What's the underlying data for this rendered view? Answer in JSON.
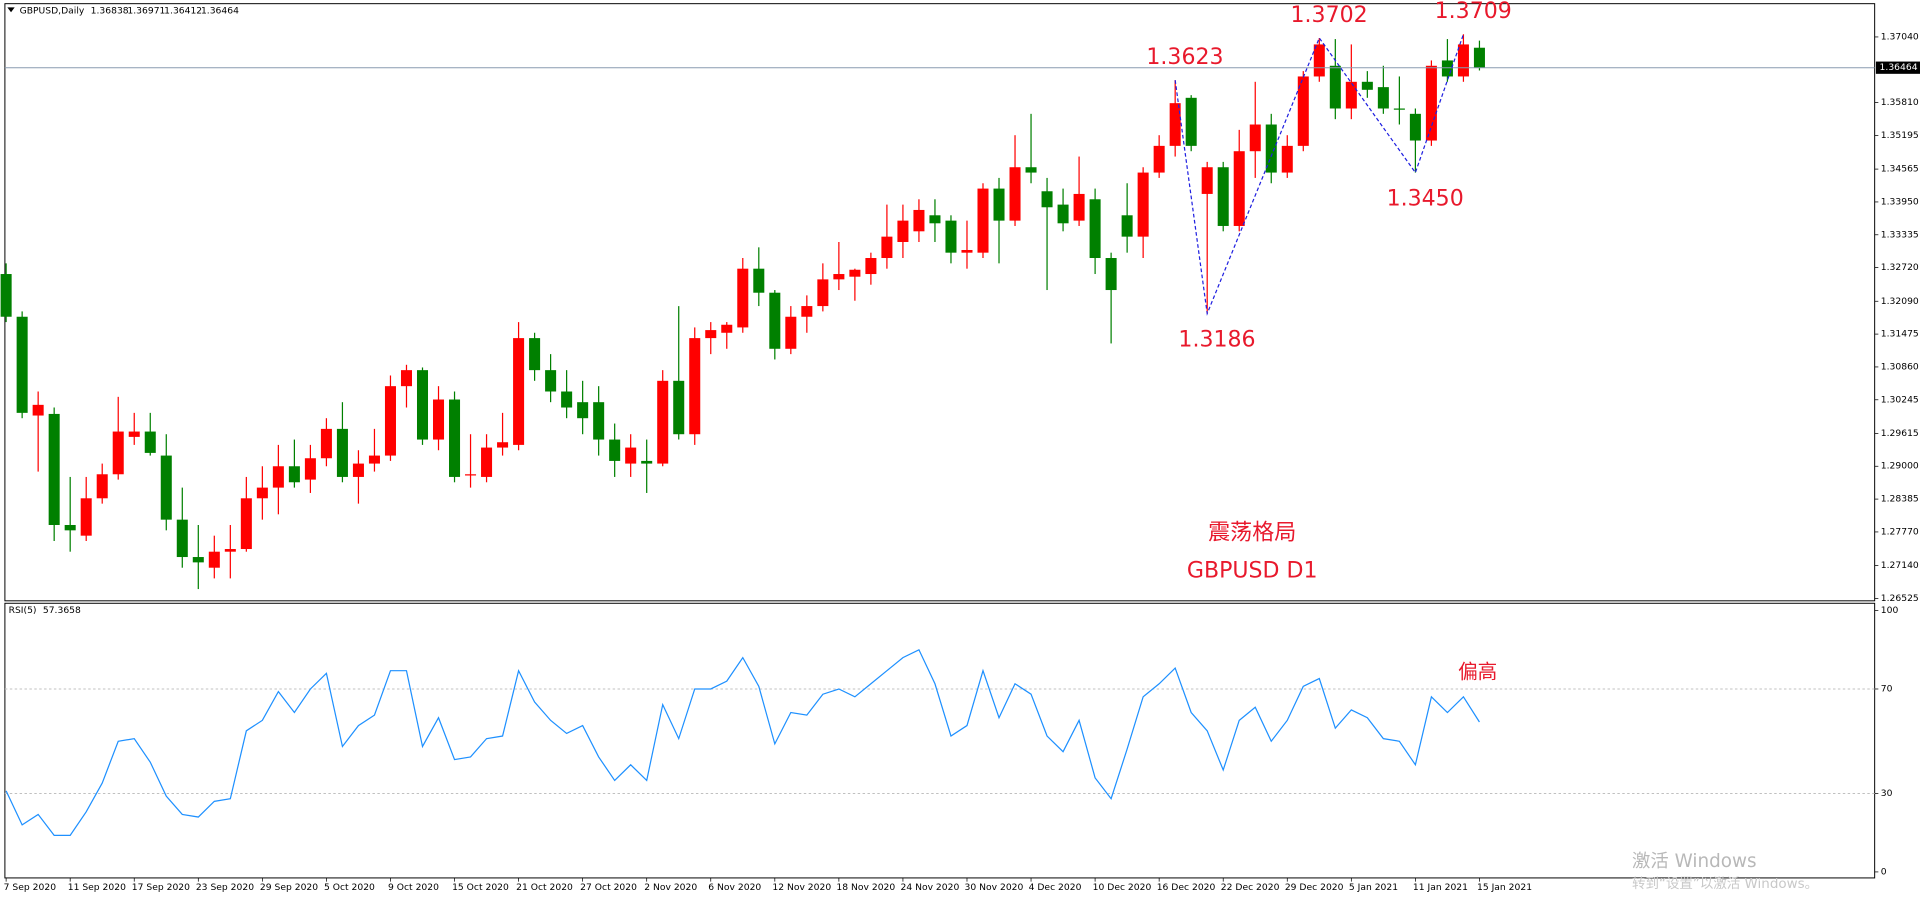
{
  "chart_data": [
    {
      "type": "candlestick",
      "title": "GBPUSD,Daily",
      "categories": [
        "7 Sep 2020",
        null,
        null,
        null,
        "11 Sep 2020",
        null,
        null,
        null,
        "17 Sep 2020",
        null,
        null,
        null,
        "23 Sep 2020",
        null,
        null,
        null,
        "29 Sep 2020",
        null,
        null,
        null,
        "5 Oct 2020",
        null,
        null,
        null,
        "9 Oct 2020",
        null,
        null,
        null,
        "15 Oct 2020",
        null,
        null,
        null,
        "21 Oct 2020",
        null,
        null,
        null,
        "27 Oct 2020",
        null,
        null,
        null,
        "2 Nov 2020",
        null,
        null,
        null,
        "6 Nov 2020",
        null,
        null,
        null,
        "12 Nov 2020",
        null,
        null,
        null,
        "18 Nov 2020",
        null,
        null,
        null,
        "24 Nov 2020",
        null,
        null,
        null,
        "30 Nov 2020",
        null,
        null,
        null,
        "4 Dec 2020",
        null,
        null,
        null,
        "10 Dec 2020",
        null,
        null,
        null,
        "16 Dec 2020",
        null,
        null,
        null,
        "22 Dec 2020",
        null,
        null,
        null,
        "29 Dec 2020",
        null,
        null,
        null,
        "5 Jan 2021",
        null,
        null,
        null,
        "11 Jan 2021",
        null,
        null,
        null,
        "15 Jan 2021"
      ],
      "open": [
        1.326,
        1.318,
        1.2995,
        1.2998,
        1.279,
        1.277,
        1.284,
        1.2885,
        1.2955,
        1.2965,
        1.292,
        1.28,
        1.273,
        1.271,
        1.274,
        1.2745,
        1.284,
        1.286,
        1.29,
        1.2875,
        1.2915,
        1.297,
        1.288,
        1.2905,
        1.292,
        1.305,
        1.308,
        1.295,
        1.3025,
        1.2885,
        1.288,
        1.2935,
        1.294,
        1.314,
        1.308,
        1.304,
        1.302,
        1.302,
        1.295,
        1.2905,
        1.291,
        1.2905,
        1.306,
        1.296,
        1.314,
        1.315,
        1.316,
        1.327,
        1.3225,
        1.312,
        1.318,
        1.32,
        1.325,
        1.3255,
        1.326,
        1.329,
        1.332,
        1.334,
        1.337,
        1.336,
        1.33,
        1.33,
        1.342,
        1.336,
        1.346,
        1.3415,
        1.339,
        1.336,
        1.34,
        1.329,
        1.337,
        1.333,
        1.345,
        1.35,
        1.359,
        1.341,
        1.346,
        1.335,
        1.349,
        1.354,
        1.345,
        1.35,
        1.363,
        1.365,
        1.357,
        1.362,
        1.361,
        1.357,
        1.356,
        1.351,
        1.366,
        1.363,
        1.36838
      ],
      "high": [
        1.328,
        1.319,
        1.304,
        1.301,
        1.288,
        1.288,
        1.2905,
        1.303,
        1.3,
        1.3,
        1.296,
        1.286,
        1.279,
        1.277,
        1.279,
        1.288,
        1.29,
        1.294,
        1.295,
        1.294,
        1.299,
        1.302,
        1.293,
        1.297,
        1.307,
        1.309,
        1.3085,
        1.305,
        1.304,
        1.296,
        1.296,
        1.3,
        1.317,
        1.315,
        1.311,
        1.308,
        1.306,
        1.305,
        1.298,
        1.296,
        1.295,
        1.308,
        1.32,
        1.316,
        1.317,
        1.317,
        1.329,
        1.331,
        1.323,
        1.32,
        1.322,
        1.328,
        1.332,
        1.327,
        1.33,
        1.339,
        1.339,
        1.34,
        1.34,
        1.337,
        1.336,
        1.343,
        1.344,
        1.352,
        1.356,
        1.344,
        1.342,
        1.348,
        1.342,
        1.33,
        1.343,
        1.346,
        1.352,
        1.3623,
        1.3595,
        1.347,
        1.347,
        1.353,
        1.362,
        1.356,
        1.352,
        1.364,
        1.3702,
        1.37,
        1.369,
        1.364,
        1.365,
        1.363,
        1.357,
        1.366,
        1.37,
        1.3709,
        1.36971
      ],
      "low": [
        1.317,
        1.299,
        1.289,
        1.276,
        1.274,
        1.276,
        1.283,
        1.2875,
        1.294,
        1.292,
        1.278,
        1.271,
        1.267,
        1.269,
        1.269,
        1.274,
        1.28,
        1.281,
        1.286,
        1.285,
        1.29,
        1.287,
        1.283,
        1.289,
        1.291,
        1.301,
        1.294,
        1.293,
        1.287,
        1.286,
        1.287,
        1.292,
        1.293,
        1.306,
        1.302,
        1.299,
        1.296,
        1.292,
        1.288,
        1.288,
        1.285,
        1.29,
        1.295,
        1.294,
        1.311,
        1.312,
        1.315,
        1.32,
        1.31,
        1.311,
        1.315,
        1.319,
        1.323,
        1.321,
        1.324,
        1.327,
        1.329,
        1.332,
        1.332,
        1.328,
        1.327,
        1.329,
        1.328,
        1.335,
        1.343,
        1.323,
        1.334,
        1.335,
        1.326,
        1.313,
        1.33,
        1.329,
        1.344,
        1.348,
        1.349,
        1.3186,
        1.334,
        1.334,
        1.344,
        1.343,
        1.344,
        1.349,
        1.362,
        1.355,
        1.355,
        1.359,
        1.356,
        1.354,
        1.345,
        1.35,
        1.362,
        1.362,
        1.36412
      ],
      "close": [
        1.318,
        1.3,
        1.3015,
        1.279,
        1.278,
        1.284,
        1.2885,
        1.2965,
        1.2965,
        1.2925,
        1.28,
        1.273,
        1.272,
        1.274,
        1.2745,
        1.284,
        1.286,
        1.29,
        1.287,
        1.2915,
        1.297,
        1.288,
        1.2905,
        1.292,
        1.305,
        1.308,
        1.295,
        1.3025,
        1.288,
        1.2885,
        1.2935,
        1.2945,
        1.314,
        1.308,
        1.304,
        1.301,
        1.299,
        1.295,
        1.291,
        1.2935,
        1.2905,
        1.306,
        1.296,
        1.314,
        1.3155,
        1.3165,
        1.327,
        1.3225,
        1.312,
        1.318,
        1.32,
        1.325,
        1.326,
        1.3268,
        1.329,
        1.333,
        1.336,
        1.338,
        1.3355,
        1.33,
        1.3305,
        1.342,
        1.336,
        1.346,
        1.345,
        1.3385,
        1.3355,
        1.341,
        1.329,
        1.323,
        1.333,
        1.345,
        1.35,
        1.358,
        1.35,
        1.346,
        1.335,
        1.349,
        1.354,
        1.345,
        1.35,
        1.363,
        1.369,
        1.357,
        1.362,
        1.3605,
        1.357,
        1.3568,
        1.351,
        1.365,
        1.363,
        1.369,
        1.36464
      ],
      "up_color": "#ff0000",
      "down_color": "#008000",
      "ylim": [
        1.2648,
        1.3764
      ],
      "yticks": [
        {
          "value": 1.3704,
          "label": "1.37040"
        },
        {
          "value": 1.3581,
          "label": "1.35810"
        },
        {
          "value": 1.35195,
          "label": "1.35195"
        },
        {
          "value": 1.34565,
          "label": "1.34565"
        },
        {
          "value": 1.3395,
          "label": "1.33950"
        },
        {
          "value": 1.33335,
          "label": "1.33335"
        },
        {
          "value": 1.3272,
          "label": "1.32720"
        },
        {
          "value": 1.3209,
          "label": "1.32090"
        },
        {
          "value": 1.31475,
          "label": "1.31475"
        },
        {
          "value": 1.3086,
          "label": "1.30860"
        },
        {
          "value": 1.30245,
          "label": "1.30245"
        },
        {
          "value": 1.29615,
          "label": "1.29615"
        },
        {
          "value": 1.29,
          "label": "1.29000"
        },
        {
          "value": 1.28385,
          "label": "1.28385"
        },
        {
          "value": 1.2777,
          "label": "1.27770"
        },
        {
          "value": 1.2714,
          "label": "1.27140"
        },
        {
          "value": 1.26525,
          "label": "1.26525"
        }
      ],
      "price_line": true,
      "annotations": [
        {
          "bar": 73,
          "value": 1.3623,
          "label": "1.3623"
        },
        {
          "bar": 75,
          "value": 1.3186,
          "label": "1.3186"
        },
        {
          "bar": 82,
          "value": 1.3702,
          "label": "1.3702"
        },
        {
          "bar": 88,
          "value": 1.345,
          "label": "1.3450"
        },
        {
          "bar": 91,
          "value": 1.3709,
          "label": "1.3709"
        }
      ],
      "zigzag_color": "#2020e0",
      "texts": [
        "震荡格局",
        "GBPUSD D1"
      ]
    },
    {
      "type": "line",
      "title": "RSI(5)",
      "color": "#1e90ff",
      "values": [
        31,
        18,
        22,
        14,
        14,
        23,
        34,
        50,
        51,
        42,
        29,
        22,
        21,
        27,
        28,
        54,
        58,
        69,
        61,
        70,
        76,
        48,
        56,
        60,
        77,
        77,
        48,
        59,
        43,
        44,
        51,
        52,
        77,
        65,
        58,
        53,
        56,
        44,
        35,
        41,
        35,
        64,
        51,
        70,
        70,
        73,
        82,
        71,
        49,
        61,
        60,
        68,
        70,
        67,
        72,
        77,
        82,
        85,
        72,
        52,
        56,
        77,
        59,
        72,
        68,
        52,
        46,
        58,
        36,
        28,
        47,
        67,
        72,
        78,
        61,
        54,
        39,
        58,
        63,
        50,
        58,
        71,
        74,
        55,
        62,
        59,
        51,
        50,
        41,
        67,
        61,
        67,
        57.3658
      ],
      "ylim": [
        -2.3,
        102.8
      ],
      "yticks": [
        100,
        70,
        30,
        0
      ],
      "levels": [
        70,
        30
      ],
      "texts": [
        "偏高"
      ]
    }
  ],
  "watermark": [
    "激活 Windows",
    "转到“设置”以激活 Windows。"
  ]
}
